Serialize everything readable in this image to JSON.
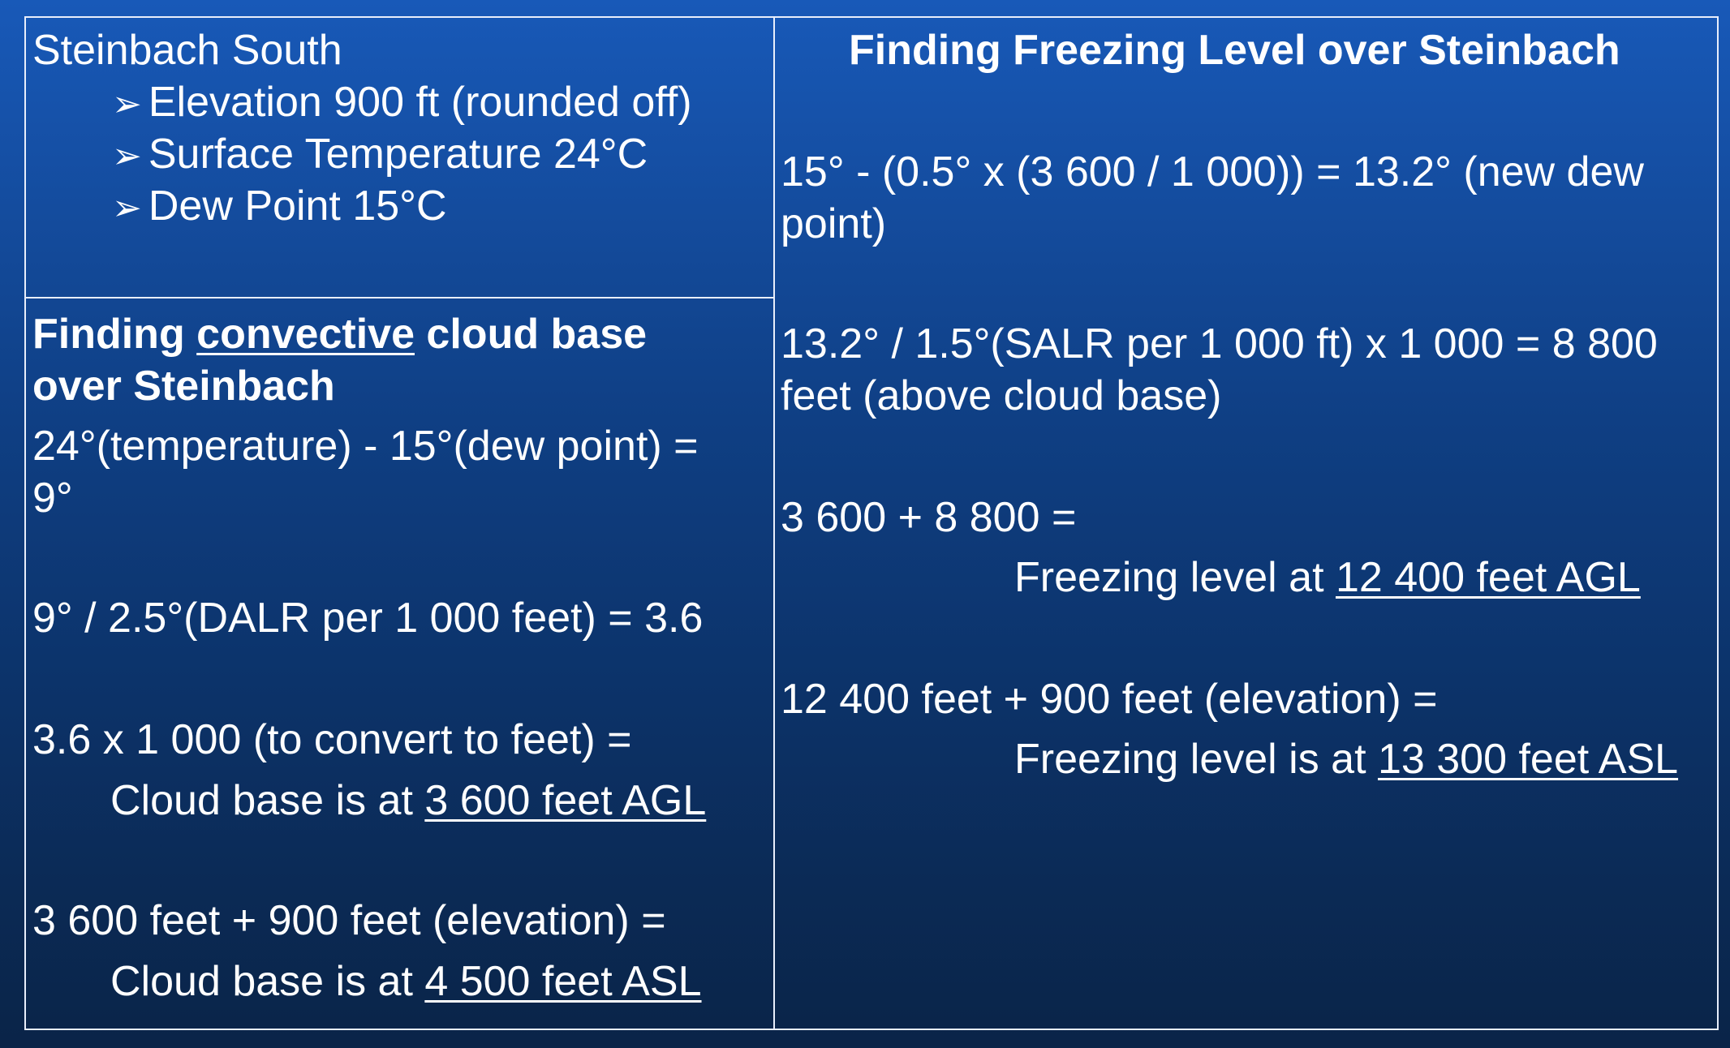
{
  "left_top": {
    "title": "Steinbach South",
    "bullet_glyph": "➢",
    "items": [
      "Elevation 900 ft (rounded off)",
      "Surface Temperature 24°C",
      "Dew Point 15°C"
    ]
  },
  "left_bottom": {
    "heading_part1": "Finding ",
    "heading_underlined": "convective",
    "heading_part2": " cloud base",
    "heading_line2": "over Steinbach",
    "calc1_line1": "24°(temperature) - 15°(dew point) =",
    "calc1_line2": "9°",
    "calc2": "9° / 2.5°(DALR per 1 000 feet) = 3.6",
    "calc3_line1": "3.6 x 1 000 (to convert to feet) =",
    "calc3_result_prefix": "Cloud base is at ",
    "calc3_result_value": "3 600 feet AGL",
    "calc4_line1": "3 600 feet + 900 feet (elevation) =",
    "calc4_result_prefix": "Cloud base is at ",
    "calc4_result_value": "4 500 feet ASL"
  },
  "right": {
    "heading": "Finding Freezing Level over Steinbach",
    "calc1_line1": "15° - (0.5° x (3 600 / 1 000)) = 13.2° (new dew",
    "calc1_line2": "point)",
    "calc2_line1": "13.2° / 1.5°(SALR per 1 000 ft) x 1 000 = 8 800",
    "calc2_line2": "feet (above cloud base)",
    "calc3_line1": "3 600 + 8 800 =",
    "calc3_result_prefix": "Freezing level at ",
    "calc3_result_value": "12 400 feet AGL",
    "calc4_line1": "12 400 feet + 900 feet (elevation) =",
    "calc4_result_prefix": "Freezing level is at ",
    "calc4_result_value": "13 300 feet ASL"
  },
  "colors": {
    "text": "#ffffff",
    "border": "#e8eefb",
    "background_top": "#1859b8",
    "background_bottom": "#0a2448"
  }
}
